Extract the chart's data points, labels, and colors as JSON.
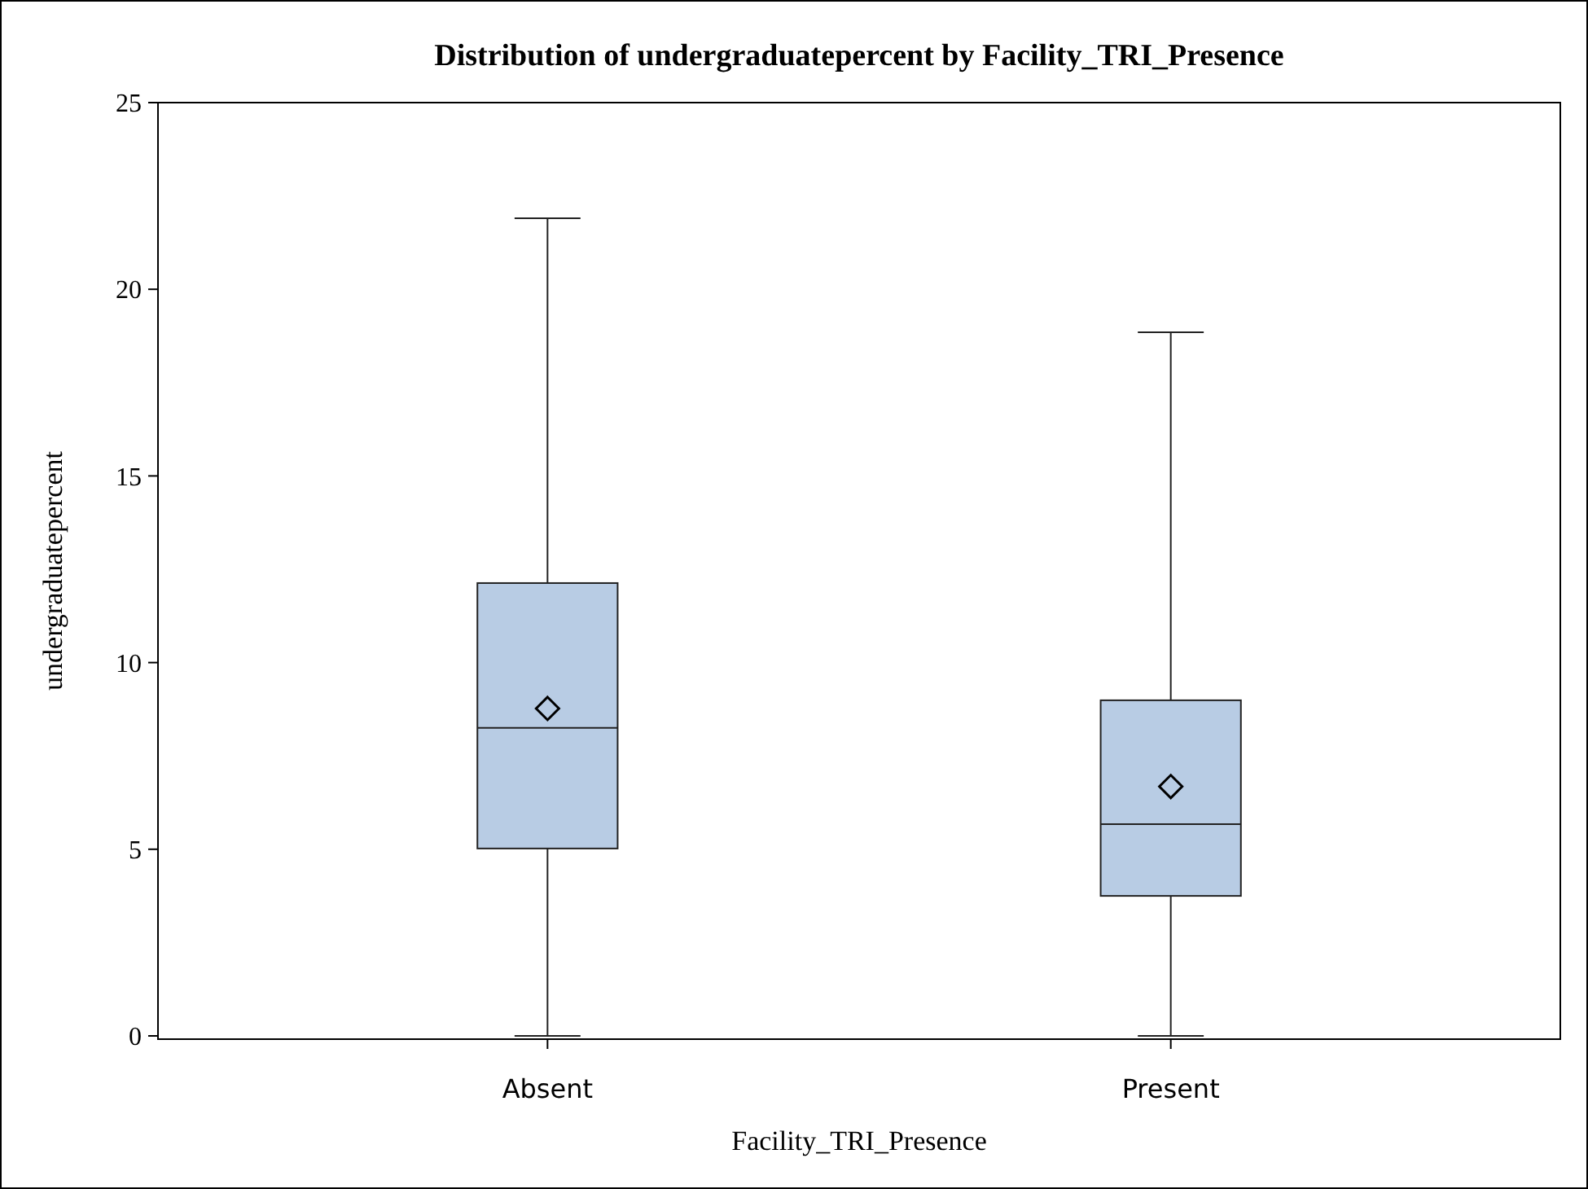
{
  "chart_data": {
    "type": "box",
    "title": "Distribution of undergraduatepercent by Facility_TRI_Presence",
    "xlabel": "Facility_TRI_Presence",
    "ylabel": "undergraduatepercent",
    "categories": [
      "Absent",
      "Present"
    ],
    "boxes": [
      {
        "low": 0,
        "q1": 5.02,
        "median": 8.25,
        "q3": 12.13,
        "high": 21.9,
        "mean": 8.77
      },
      {
        "low": 0,
        "q1": 3.75,
        "median": 5.67,
        "q3": 8.99,
        "high": 18.85,
        "mean": 6.68
      }
    ],
    "color": "#b8cce4",
    "ylim": [
      0,
      25
    ],
    "yticks": [
      0,
      5,
      10,
      15,
      20,
      25
    ],
    "grid": false,
    "marker": "diamond"
  }
}
